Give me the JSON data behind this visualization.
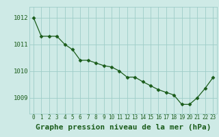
{
  "x": [
    0,
    1,
    2,
    3,
    4,
    5,
    6,
    7,
    8,
    9,
    10,
    11,
    12,
    13,
    14,
    15,
    16,
    17,
    18,
    19,
    20,
    21,
    22,
    23
  ],
  "y": [
    1012.0,
    1011.3,
    1011.3,
    1011.3,
    1011.0,
    1010.8,
    1010.4,
    1010.4,
    1010.3,
    1010.2,
    1010.15,
    1010.0,
    1009.77,
    1009.77,
    1009.6,
    1009.45,
    1009.3,
    1009.2,
    1009.1,
    1008.75,
    1008.75,
    1009.0,
    1009.35,
    1009.75
  ],
  "line_color": "#1a5c1a",
  "marker": "D",
  "marker_size": 2.5,
  "bg_color": "#ceeae6",
  "grid_color": "#9ecdc7",
  "xlabel": "Graphe pression niveau de la mer (hPa)",
  "xlabel_fontsize": 8,
  "xlabel_color": "#1a5c1a",
  "xlabel_bold": true,
  "ylim": [
    1008.4,
    1012.4
  ],
  "yticks": [
    1009,
    1010,
    1011,
    1012
  ],
  "xtick_fontsize": 5.5,
  "ytick_fontsize": 6.5,
  "tick_color": "#1a5c1a"
}
